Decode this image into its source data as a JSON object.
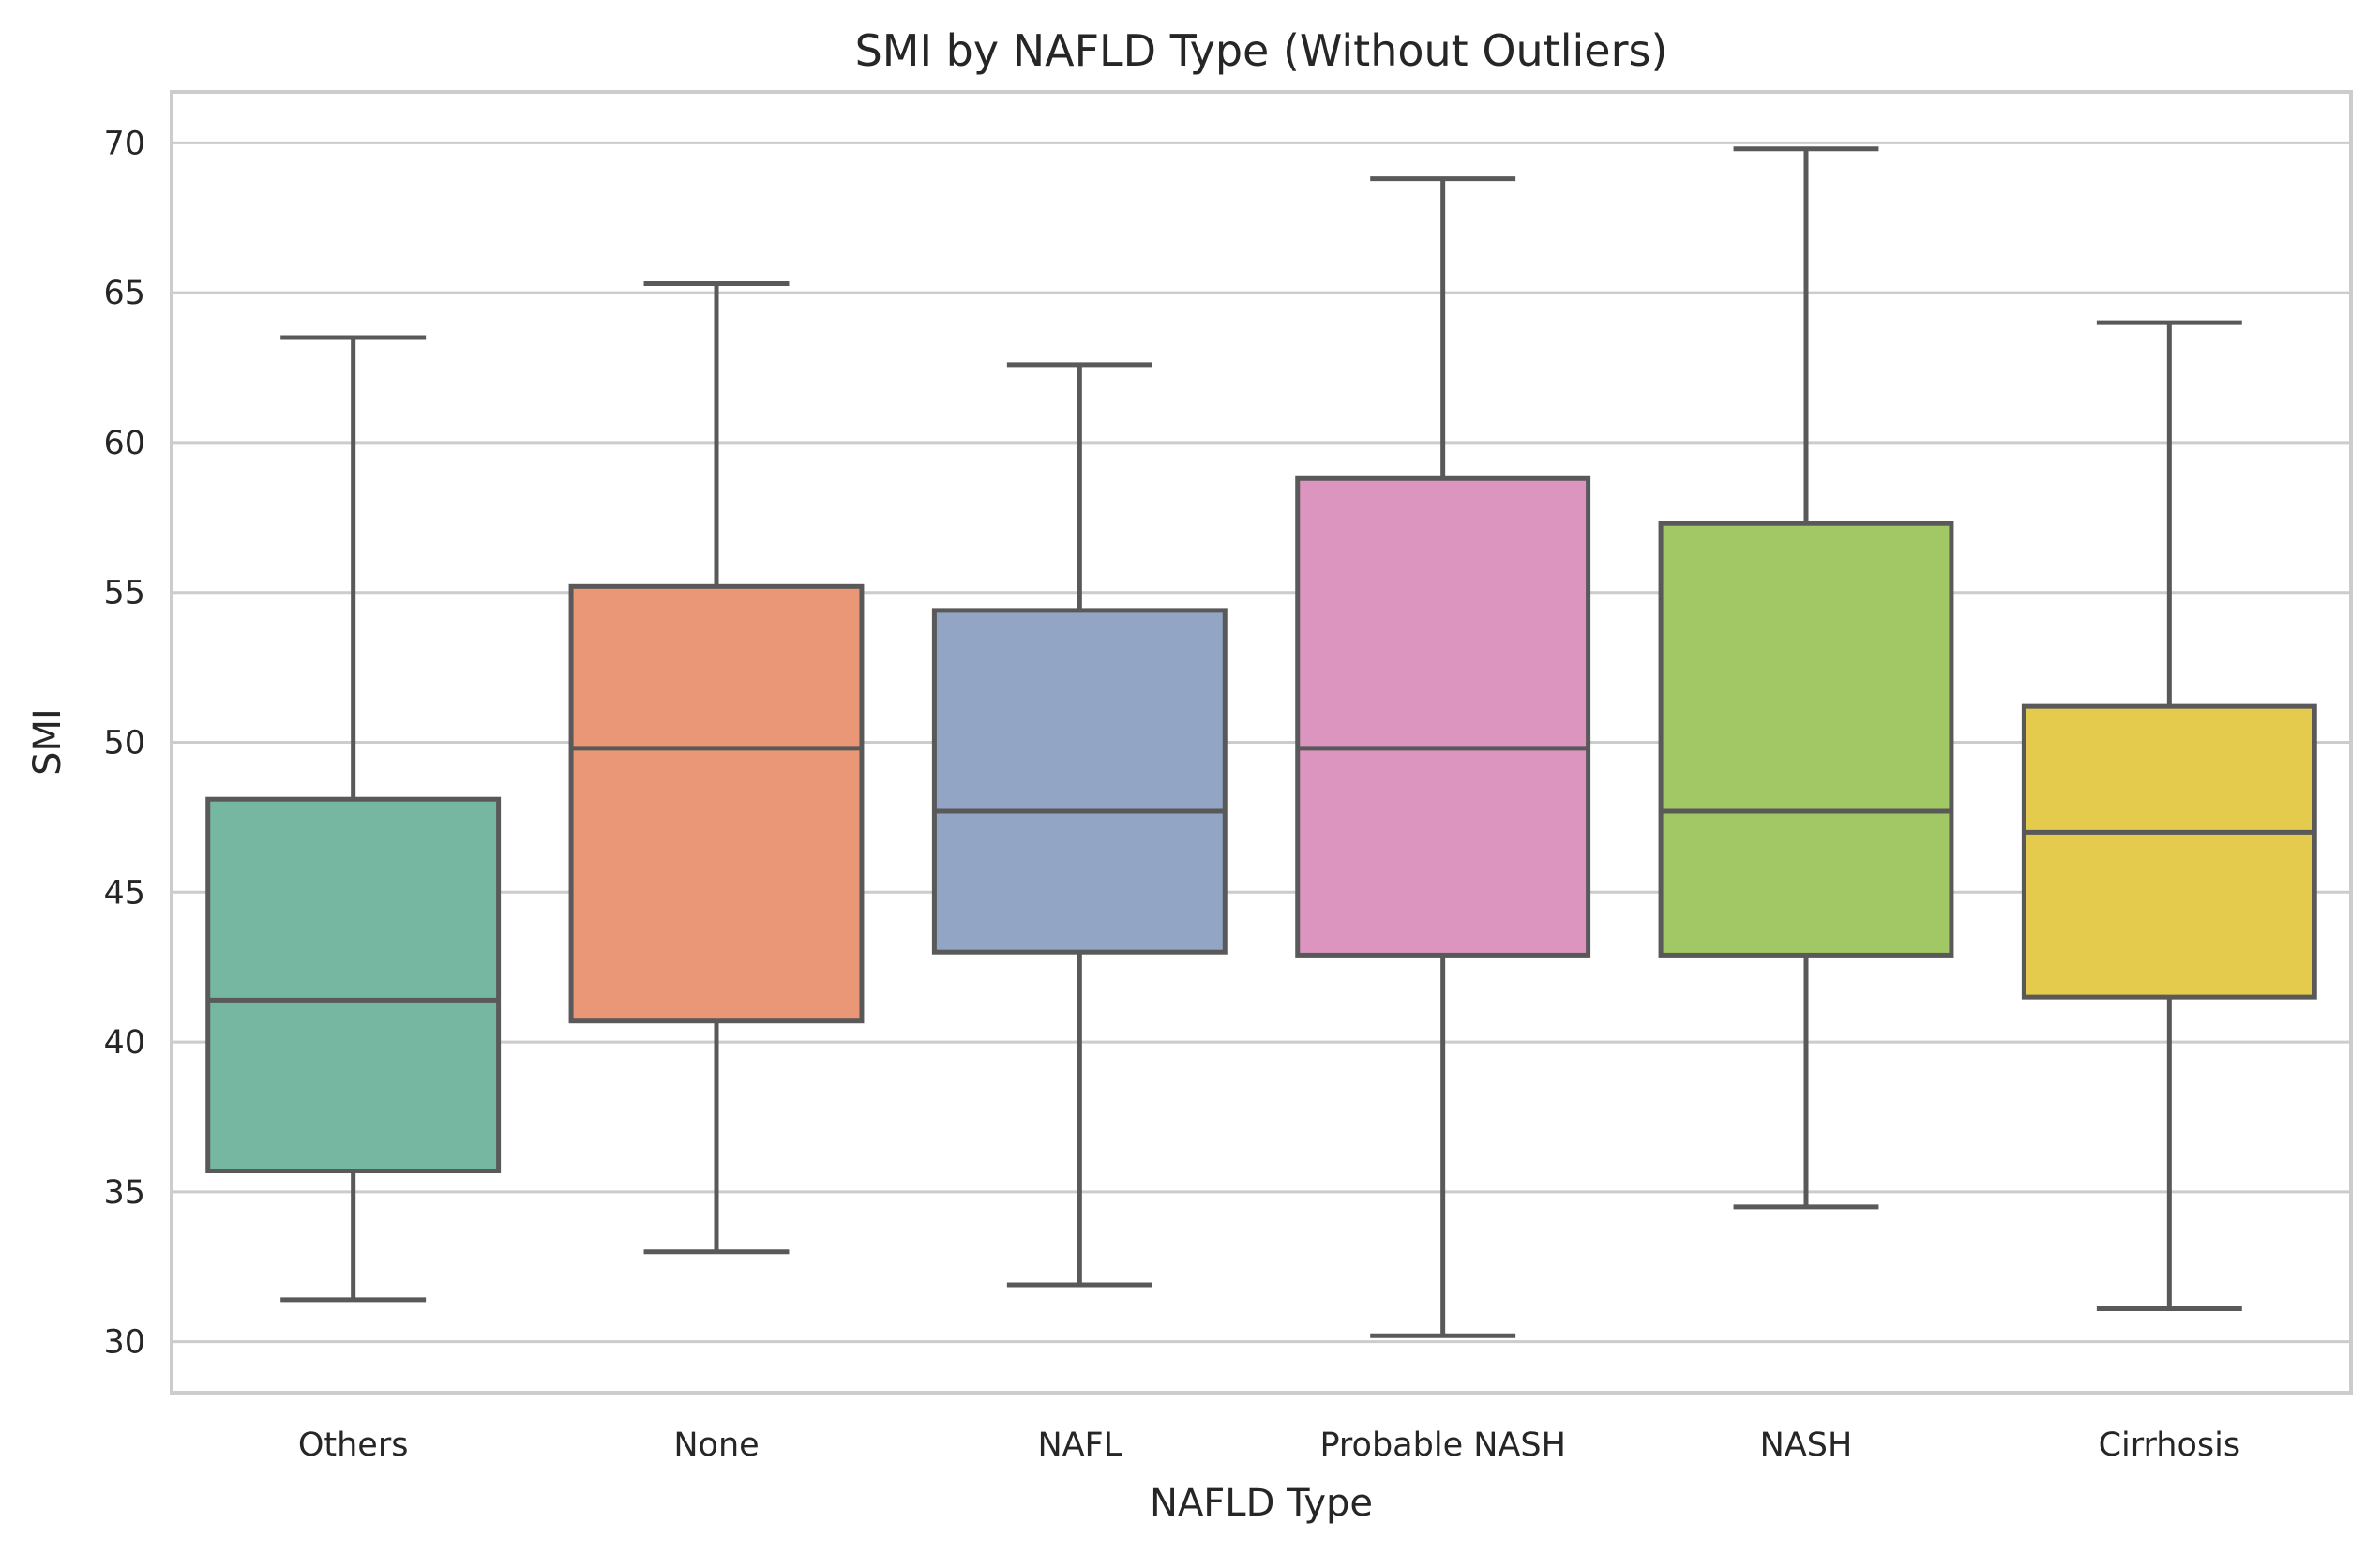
{
  "chart_data": {
    "type": "box",
    "title": "SMI by NAFLD Type (Without Outliers)",
    "xlabel": "NAFLD Type",
    "ylabel": "SMI",
    "ylim": [
      28.3,
      71.7
    ],
    "yticks": [
      30,
      35,
      40,
      45,
      50,
      55,
      60,
      65,
      70
    ],
    "grid": true,
    "categories": [
      "Others",
      "None",
      "NAFL",
      "Probable NASH",
      "NASH",
      "Cirrhosis"
    ],
    "boxes": [
      {
        "category": "Others",
        "whisker_low": 31.4,
        "q1": 35.7,
        "median": 41.4,
        "q3": 48.1,
        "whisker_high": 63.5,
        "color": "#76b7a1"
      },
      {
        "category": "None",
        "whisker_low": 33.0,
        "q1": 40.7,
        "median": 49.8,
        "q3": 55.2,
        "whisker_high": 65.3,
        "color": "#e99776"
      },
      {
        "category": "NAFL",
        "whisker_low": 31.9,
        "q1": 43.0,
        "median": 47.7,
        "q3": 54.4,
        "whisker_high": 62.6,
        "color": "#93a5c5"
      },
      {
        "category": "Probable NASH",
        "whisker_low": 30.2,
        "q1": 42.9,
        "median": 49.8,
        "q3": 58.8,
        "whisker_high": 68.8,
        "color": "#dc95be"
      },
      {
        "category": "NASH",
        "whisker_low": 34.5,
        "q1": 42.9,
        "median": 47.7,
        "q3": 57.3,
        "whisker_high": 69.8,
        "color": "#a2c866"
      },
      {
        "category": "Cirrhosis",
        "whisker_low": 31.1,
        "q1": 41.5,
        "median": 47.0,
        "q3": 51.2,
        "whisker_high": 64.0,
        "color": "#e4ca4d"
      }
    ]
  }
}
